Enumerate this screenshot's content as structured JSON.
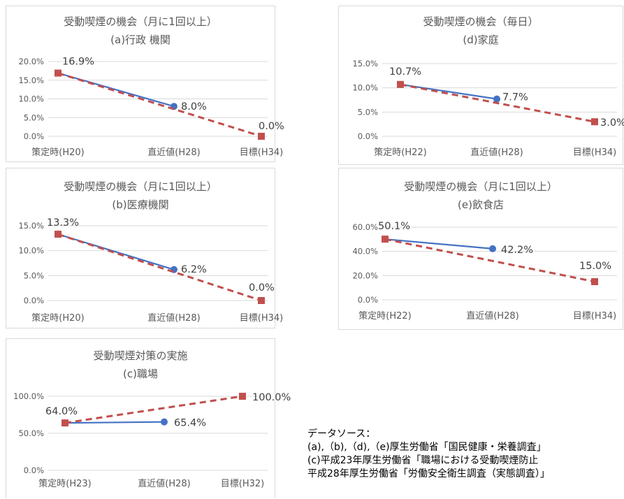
{
  "colors": {
    "actual": "#4472c4",
    "target": "#c0504d",
    "grid": "#d9d9d9",
    "axis_text": "#595959",
    "label_text": "#404040"
  },
  "chart_data": [
    {
      "id": "a",
      "type": "line",
      "title": "受動喫煙の機会（月に1回以上）",
      "subtitle": "(a)行政 機関",
      "categories": [
        "策定時(H20)",
        "直近値(H28)",
        "目標(H34)"
      ],
      "yticks": [
        "20.0%",
        "15.0%",
        "10.0%",
        "5.0%",
        "0.0%"
      ],
      "ylim": [
        0,
        20
      ],
      "series": [
        {
          "style": "solid-circle",
          "values": [
            16.9,
            8.0,
            null
          ]
        },
        {
          "style": "dashed-square",
          "values": [
            16.9,
            null,
            0.0
          ]
        }
      ],
      "data_labels": [
        "16.9%",
        "8.0%",
        "0.0%"
      ]
    },
    {
      "id": "d",
      "type": "line",
      "title": "受動喫煙の機会（毎日）",
      "subtitle": "(d)家庭",
      "categories": [
        "策定時(H22)",
        "直近値(H28)",
        "目標(H34)"
      ],
      "yticks": [
        "15.0%",
        "10.0%",
        "5.0%",
        "0.0%"
      ],
      "ylim": [
        0,
        15
      ],
      "series": [
        {
          "style": "solid-circle",
          "values": [
            10.7,
            7.7,
            null
          ]
        },
        {
          "style": "dashed-square",
          "values": [
            10.7,
            null,
            3.0
          ]
        }
      ],
      "data_labels": [
        "10.7%",
        "7.7%",
        "3.0%"
      ]
    },
    {
      "id": "b",
      "type": "line",
      "title": "受動喫煙の機会（月に1回以上）",
      "subtitle": "(b)医療機関",
      "categories": [
        "策定時(H20)",
        "直近値(H28)",
        "目標(H34)"
      ],
      "yticks": [
        "15.0%",
        "10.0%",
        "5.0%",
        "0.0%"
      ],
      "ylim": [
        0,
        15
      ],
      "series": [
        {
          "style": "solid-circle",
          "values": [
            13.3,
            6.2,
            null
          ]
        },
        {
          "style": "dashed-square",
          "values": [
            13.3,
            null,
            0.0
          ]
        }
      ],
      "data_labels": [
        "13.3%",
        "6.2%",
        "0.0%"
      ]
    },
    {
      "id": "e",
      "type": "line",
      "title": "受動喫煙の機会（月に1回以上）",
      "subtitle": "(e)飲食店",
      "categories": [
        "策定時(H22)",
        "直近値(H28)",
        "目標(H34)"
      ],
      "yticks": [
        "60.0%",
        "40.0%",
        "20.0%",
        "0.0%"
      ],
      "ylim": [
        0,
        60
      ],
      "series": [
        {
          "style": "solid-circle",
          "values": [
            50.1,
            42.2,
            null
          ]
        },
        {
          "style": "dashed-square",
          "values": [
            50.1,
            null,
            15.0
          ]
        }
      ],
      "data_labels": [
        "50.1%",
        "42.2%",
        "15.0%"
      ]
    },
    {
      "id": "c",
      "type": "line",
      "title": "受動喫煙対策の実施",
      "subtitle": "(c)職場",
      "categories": [
        "策定時(H23)",
        "直近値(H28)",
        "目標(H32)"
      ],
      "yticks": [
        "100.0%",
        "50.0%",
        "0.0%"
      ],
      "ylim": [
        0,
        100
      ],
      "series": [
        {
          "style": "solid-circle",
          "values": [
            64.0,
            65.4,
            null
          ]
        },
        {
          "style": "dashed-square",
          "values": [
            64.0,
            null,
            100.0
          ]
        }
      ],
      "data_labels": [
        "64.0%",
        "65.4%",
        "100.0%"
      ]
    }
  ],
  "source": {
    "heading": "データソース：",
    "line1": "(a),（b),（d),（e)厚生労働省「国民健康・栄養調査」",
    "line2": "(c)平成23年厚生労働省「職場における受動喫煙防止",
    "line3": "平成28年厚生労働省「労働安全衛生調査（実態調査）」"
  }
}
